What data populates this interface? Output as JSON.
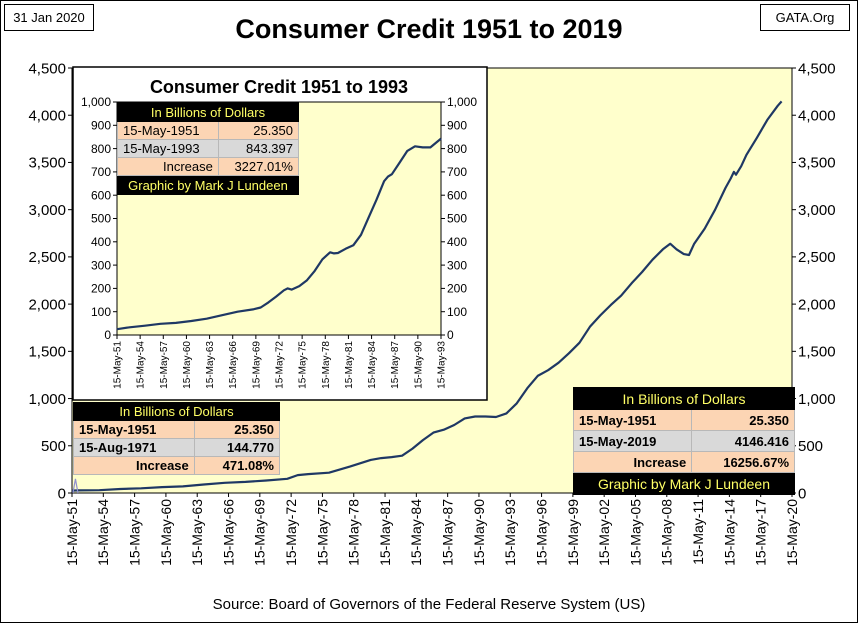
{
  "header": {
    "date": "31 Jan 2020",
    "brand": "GATA.Org",
    "title": "Consumer Credit 1951 to 2019",
    "source": "Source: Board of Governors of the Federal Reserve System (US)"
  },
  "colors": {
    "plot_bg": "#ffffcc",
    "line": "#1f3864",
    "table_header_bg": "#000000",
    "table_header_text": "#ffff66",
    "row_peach": "#fcd5b4",
    "row_gray": "#d9d9d9"
  },
  "main_table": {
    "header": "In Billions of Dollars",
    "rows": [
      {
        "label": "15-May-1951",
        "value": "25.350"
      },
      {
        "label": "15-May-2019",
        "value": "4146.416"
      },
      {
        "label": "Increase",
        "value": "16256.67%"
      }
    ],
    "credit": "Graphic by Mark J Lundeen"
  },
  "left_table": {
    "header": "In Billions of Dollars",
    "rows": [
      {
        "label": "15-May-1951",
        "value": "25.350"
      },
      {
        "label": "15-Aug-1971",
        "value": "144.770"
      },
      {
        "label": "Increase",
        "value": "471.08%"
      }
    ]
  },
  "inset_table": {
    "header": "In Billions of Dollars",
    "rows": [
      {
        "label": "15-May-1951",
        "value": "25.350"
      },
      {
        "label": "15-May-1993",
        "value": "843.397"
      },
      {
        "label": "Increase",
        "value": "3227.01%"
      }
    ],
    "credit": "Graphic by Mark J Lundeen"
  },
  "chart_data": [
    {
      "id": "main",
      "type": "line",
      "title": "Consumer Credit 1951 to 2019",
      "ylim": [
        0,
        4500
      ],
      "yticks": [
        0,
        500,
        1000,
        1500,
        2000,
        2500,
        3000,
        3500,
        4000,
        4500
      ],
      "ytick_labels": [
        "0",
        "500",
        "1,000",
        "1,500",
        "2,000",
        "2,500",
        "3,000",
        "3,500",
        "4,000",
        "4,500"
      ],
      "xlim": [
        1951.37,
        2020.37
      ],
      "xticks": [
        1951.37,
        1954.37,
        1957.37,
        1960.37,
        1963.37,
        1966.37,
        1969.37,
        1972.37,
        1975.37,
        1978.37,
        1981.37,
        1984.37,
        1987.37,
        1990.37,
        1993.37,
        1996.37,
        1999.37,
        2002.37,
        2005.37,
        2008.37,
        2011.37,
        2014.37,
        2017.37,
        2020.37
      ],
      "xtick_labels": [
        "15-May-51",
        "15-May-54",
        "15-May-57",
        "15-May-60",
        "15-May-63",
        "15-May-66",
        "15-May-69",
        "15-May-72",
        "15-May-75",
        "15-May-78",
        "15-May-81",
        "15-May-84",
        "15-May-87",
        "15-May-90",
        "15-May-93",
        "15-May-96",
        "15-May-99",
        "15-May-02",
        "15-May-05",
        "15-May-08",
        "15-May-11",
        "15-May-14",
        "15-May-17",
        "15-May-20"
      ],
      "x": [
        1951.37,
        1952,
        1954,
        1956,
        1958,
        1960,
        1962,
        1964,
        1966,
        1968,
        1970,
        1972,
        1973,
        1974,
        1976,
        1978,
        1980,
        1981,
        1982,
        1983,
        1984,
        1985,
        1986,
        1987,
        1988,
        1989,
        1990,
        1991,
        1992,
        1993,
        1994,
        1995,
        1996,
        1997,
        1998,
        1999,
        2000,
        2001,
        2002,
        2003,
        2004,
        2005,
        2006,
        2007,
        2008,
        2008.7,
        2009.3,
        2010,
        2010.5,
        2011,
        2012,
        2013,
        2014,
        2014.5,
        2014.8,
        2015,
        2015.5,
        2016,
        2017,
        2018,
        2019,
        2019.37
      ],
      "values": [
        25,
        27,
        30,
        42,
        50,
        62,
        70,
        90,
        108,
        118,
        132,
        150,
        190,
        200,
        215,
        280,
        350,
        370,
        380,
        395,
        470,
        560,
        640,
        670,
        720,
        790,
        810,
        810,
        805,
        843,
        950,
        1110,
        1240,
        1300,
        1380,
        1480,
        1590,
        1760,
        1880,
        1990,
        2090,
        2220,
        2340,
        2470,
        2580,
        2640,
        2580,
        2530,
        2520,
        2640,
        2800,
        3000,
        3230,
        3330,
        3400,
        3370,
        3460,
        3580,
        3760,
        3950,
        4100,
        4146
      ],
      "blip": {
        "x": 1951.7,
        "value": 150
      }
    },
    {
      "id": "inset",
      "type": "line",
      "title": "Consumer Credit 1951 to 1993",
      "ylim": [
        0,
        1000
      ],
      "yticks": [
        0,
        100,
        200,
        300,
        400,
        500,
        600,
        700,
        800,
        900,
        1000
      ],
      "ytick_labels": [
        "0",
        "100",
        "200",
        "300",
        "400",
        "500",
        "600",
        "700",
        "800",
        "900",
        "1,000"
      ],
      "xlim": [
        1951.37,
        1993.37
      ],
      "xticks": [
        1951.37,
        1954.37,
        1957.37,
        1960.37,
        1963.37,
        1966.37,
        1969.37,
        1972.37,
        1975.37,
        1978.37,
        1981.37,
        1984.37,
        1987.37,
        1990.37,
        1993.37
      ],
      "xtick_labels": [
        "15-May-51",
        "15-May-54",
        "15-May-57",
        "15-May-60",
        "15-May-63",
        "15-May-66",
        "15-May-69",
        "15-May-72",
        "15-May-75",
        "15-May-78",
        "15-May-81",
        "15-May-84",
        "15-May-87",
        "15-May-90",
        "15-May-93"
      ],
      "x": [
        1951.37,
        1953,
        1955,
        1957,
        1959,
        1961,
        1963,
        1965,
        1967,
        1969,
        1970,
        1971,
        1972,
        1973,
        1973.5,
        1974,
        1975,
        1976,
        1977,
        1978,
        1979,
        1979.5,
        1980,
        1981,
        1982,
        1983,
        1984,
        1985,
        1986,
        1986.5,
        1987,
        1988,
        1989,
        1990,
        1991,
        1992,
        1993.37
      ],
      "values": [
        25,
        33,
        40,
        48,
        52,
        60,
        70,
        85,
        100,
        110,
        118,
        140,
        165,
        192,
        200,
        195,
        210,
        235,
        275,
        325,
        355,
        350,
        352,
        370,
        385,
        430,
        505,
        580,
        660,
        680,
        690,
        740,
        790,
        810,
        805,
        805,
        843
      ]
    }
  ]
}
